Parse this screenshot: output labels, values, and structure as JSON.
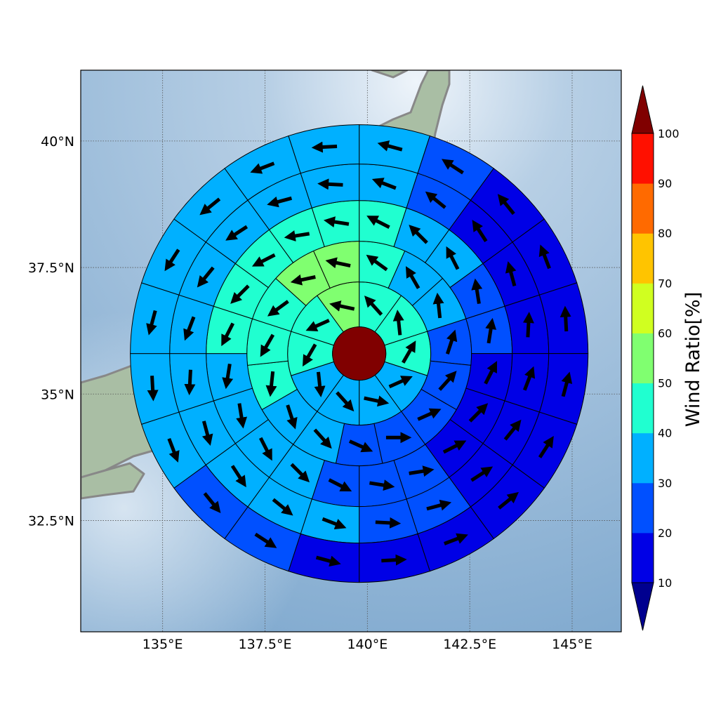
{
  "map": {
    "lon_range": [
      133.0,
      146.2
    ],
    "lat_range": [
      30.3,
      41.4
    ],
    "lon_ticks": [
      {
        "value": 135,
        "label": "135°E"
      },
      {
        "value": 137.5,
        "label": "137.5°E"
      },
      {
        "value": 140,
        "label": "140°E"
      },
      {
        "value": 142.5,
        "label": "142.5°E"
      },
      {
        "value": 145,
        "label": "145°E"
      }
    ],
    "lat_ticks": [
      {
        "value": 40,
        "label": "40°N"
      },
      {
        "value": 37.5,
        "label": "37.5°N"
      },
      {
        "value": 35,
        "label": "35°N"
      },
      {
        "value": 32.5,
        "label": "32.5°N"
      }
    ],
    "gridlines": true,
    "center": {
      "lon": 139.8,
      "lat": 35.8
    },
    "colors": {
      "ocean_light": "#cfe0ee",
      "ocean": "#86afd2",
      "land": "#a8bba0",
      "coast": "#888888",
      "grid": "#555555"
    }
  },
  "colorbar": {
    "label": "Wind Ratio[%]",
    "ticks": [
      "10",
      "20",
      "30",
      "40",
      "50",
      "60",
      "70",
      "80",
      "90",
      "100"
    ],
    "under_color": "#00008f",
    "over_color": "#800000",
    "level_colors": [
      "#0000e6",
      "#0050ff",
      "#00b0ff",
      "#20ffd0",
      "#80ff70",
      "#d0ff20",
      "#ffc400",
      "#ff6a00",
      "#ff1000"
    ]
  },
  "chart_data": {
    "type": "polar-sector-map",
    "levels": [
      10,
      20,
      30,
      40,
      50,
      60,
      70,
      80,
      90,
      100
    ],
    "center_value": 100,
    "rings": [
      {
        "ring": 1,
        "values": [
          40,
          40,
          40,
          30,
          30,
          30,
          30,
          40,
          40,
          50
        ]
      },
      {
        "ring": 2,
        "values": [
          40,
          30,
          30,
          20,
          20,
          20,
          20,
          20,
          30,
          30,
          40,
          40,
          40,
          50,
          50
        ]
      },
      {
        "ring": 3,
        "values": [
          40,
          30,
          30,
          20,
          20,
          10,
          10,
          10,
          20,
          20,
          20,
          30,
          30,
          30,
          30,
          40,
          40,
          40,
          40,
          40
        ]
      },
      {
        "ring": 4,
        "values": [
          30,
          20,
          10,
          10,
          10,
          10,
          10,
          10,
          20,
          20,
          30,
          30,
          30,
          30,
          30,
          30,
          30,
          30,
          30,
          30
        ]
      },
      {
        "ring": 5,
        "values": [
          30,
          20,
          10,
          10,
          10,
          10,
          10,
          10,
          10,
          10,
          10,
          20,
          20,
          30,
          30,
          30,
          30,
          30,
          30,
          30
        ]
      }
    ]
  }
}
